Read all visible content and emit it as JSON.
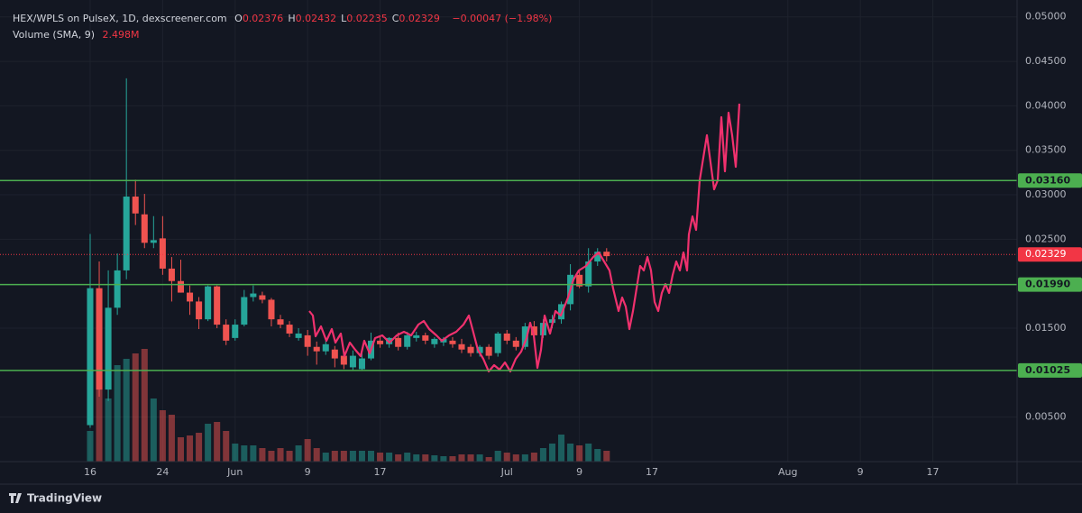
{
  "header": {
    "symbol": "HEX/WPLS on PulseX, 1D, dexscreener.com",
    "ohlc": [
      {
        "label": "O",
        "value": "0.02376"
      },
      {
        "label": "H",
        "value": "0.02432"
      },
      {
        "label": "L",
        "value": "0.02235"
      },
      {
        "label": "C",
        "value": "0.02329"
      }
    ],
    "change": "−0.00047 (−1.98%)"
  },
  "volume_indicator": {
    "label": "Volume (SMA, 9)",
    "value": "2.498M"
  },
  "footer": {
    "brand": "TradingView"
  },
  "chart_data": {
    "type": "candlestick",
    "up_color": "#26a69a",
    "down_color": "#ef5350",
    "grid": true,
    "x": [
      0,
      1,
      2,
      3,
      4,
      5,
      6,
      7,
      8,
      9,
      10,
      11,
      12,
      13,
      14,
      15,
      16,
      17,
      18,
      19,
      20,
      21,
      22,
      23,
      24,
      25,
      26,
      27,
      28,
      29,
      30,
      31,
      32,
      33,
      34,
      35,
      36,
      37,
      38,
      39,
      40,
      41,
      42,
      43,
      44,
      45,
      46,
      47,
      48,
      49,
      50,
      51,
      52,
      53,
      54,
      55,
      56,
      57
    ],
    "open": [
      0.0041,
      0.0195,
      0.0081,
      0.0173,
      0.0215,
      0.0298,
      0.0278,
      0.0246,
      0.0251,
      0.0217,
      0.0203,
      0.019,
      0.018,
      0.016,
      0.0197,
      0.0154,
      0.0139,
      0.0154,
      0.0185,
      0.0187,
      0.0182,
      0.016,
      0.0154,
      0.0139,
      0.0142,
      0.0129,
      0.0124,
      0.0126,
      0.0119,
      0.0106,
      0.0104,
      0.0116,
      0.0136,
      0.0132,
      0.0139,
      0.0129,
      0.0139,
      0.0142,
      0.0132,
      0.0134,
      0.0136,
      0.0132,
      0.0129,
      0.0122,
      0.0129,
      0.0122,
      0.0144,
      0.0136,
      0.0129,
      0.0152,
      0.0142,
      0.0156,
      0.016,
      0.0177,
      0.021,
      0.0197,
      0.0225,
      0.0236
    ],
    "high": [
      0.0256,
      0.0225,
      0.0215,
      0.0234,
      0.0431,
      0.0317,
      0.0301,
      0.0276,
      0.0276,
      0.023,
      0.0227,
      0.0198,
      0.0185,
      0.0198,
      0.0198,
      0.016,
      0.016,
      0.0193,
      0.0198,
      0.0191,
      0.0184,
      0.0165,
      0.0158,
      0.015,
      0.0148,
      0.0135,
      0.0136,
      0.013,
      0.0122,
      0.0125,
      0.0122,
      0.0145,
      0.0142,
      0.014,
      0.0145,
      0.0146,
      0.0146,
      0.0145,
      0.014,
      0.014,
      0.014,
      0.0138,
      0.0132,
      0.0131,
      0.0132,
      0.0146,
      0.0148,
      0.014,
      0.0156,
      0.0158,
      0.016,
      0.0165,
      0.018,
      0.0222,
      0.0215,
      0.024,
      0.024,
      0.024
    ],
    "low": [
      0.0038,
      0.0073,
      0.0068,
      0.0165,
      0.0205,
      0.0266,
      0.024,
      0.024,
      0.021,
      0.018,
      0.019,
      0.0165,
      0.0149,
      0.0158,
      0.015,
      0.0131,
      0.0136,
      0.0152,
      0.018,
      0.0178,
      0.0152,
      0.015,
      0.014,
      0.0136,
      0.0119,
      0.0109,
      0.012,
      0.0106,
      0.0104,
      0.0103,
      0.0102,
      0.0114,
      0.0128,
      0.0128,
      0.0125,
      0.0126,
      0.0135,
      0.0132,
      0.0128,
      0.013,
      0.0128,
      0.0122,
      0.0118,
      0.0118,
      0.0115,
      0.0118,
      0.0132,
      0.0125,
      0.0126,
      0.0138,
      0.0139,
      0.015,
      0.0155,
      0.017,
      0.0195,
      0.019,
      0.022,
      0.0225
    ],
    "close": [
      0.0195,
      0.0081,
      0.0173,
      0.0215,
      0.0298,
      0.0279,
      0.0246,
      0.0249,
      0.0217,
      0.0203,
      0.019,
      0.018,
      0.016,
      0.0197,
      0.0154,
      0.0136,
      0.0154,
      0.0185,
      0.0189,
      0.0182,
      0.016,
      0.0154,
      0.0144,
      0.0144,
      0.0129,
      0.0124,
      0.0132,
      0.0116,
      0.0109,
      0.0119,
      0.0116,
      0.0136,
      0.0132,
      0.0139,
      0.0129,
      0.0142,
      0.0142,
      0.0136,
      0.0138,
      0.0138,
      0.0132,
      0.0126,
      0.0122,
      0.0129,
      0.0119,
      0.0144,
      0.0136,
      0.0129,
      0.0152,
      0.0142,
      0.0156,
      0.016,
      0.0177,
      0.021,
      0.0197,
      0.0225,
      0.0236,
      0.0231
    ],
    "volume": [
      3.4,
      11.0,
      7.0,
      10.7,
      11.4,
      12.0,
      12.5,
      7.0,
      5.7,
      5.2,
      2.7,
      2.9,
      3.2,
      4.2,
      4.4,
      3.4,
      2.0,
      1.8,
      1.8,
      1.5,
      1.2,
      1.5,
      1.2,
      1.8,
      2.5,
      1.5,
      1.0,
      1.2,
      1.2,
      1.2,
      1.2,
      1.2,
      1.0,
      1.0,
      0.8,
      1.0,
      0.8,
      0.8,
      0.7,
      0.6,
      0.6,
      0.8,
      0.8,
      0.8,
      0.5,
      1.2,
      1.0,
      0.8,
      0.8,
      1.0,
      1.5,
      2.0,
      3.0,
      2.0,
      1.8,
      2.0,
      1.4,
      1.2
    ],
    "xlim": [
      -9.95,
      102.3
    ],
    "xticks": [
      {
        "value": 0,
        "label": "16"
      },
      {
        "value": 8,
        "label": "24"
      },
      {
        "value": 16,
        "label": "Jun"
      },
      {
        "value": 24,
        "label": "9"
      },
      {
        "value": 32,
        "label": "17"
      },
      {
        "value": 46,
        "label": "Jul"
      },
      {
        "value": 54,
        "label": "9"
      },
      {
        "value": 62,
        "label": "17"
      },
      {
        "value": 77,
        "label": "Aug"
      },
      {
        "value": 85,
        "label": "9"
      },
      {
        "value": 93,
        "label": "17"
      }
    ],
    "ylim": [
      0,
      0.0519
    ],
    "yticks": [
      {
        "value": 0.005,
        "label": "0.00500"
      },
      {
        "value": 0.015,
        "label": "0.01500"
      },
      {
        "value": 0.025,
        "label": "0.02500"
      },
      {
        "value": 0.03,
        "label": "0.03000"
      },
      {
        "value": 0.035,
        "label": "0.03500"
      },
      {
        "value": 0.04,
        "label": "0.04000"
      },
      {
        "value": 0.045,
        "label": "0.04500"
      },
      {
        "value": 0.05,
        "label": "0.05000"
      }
    ],
    "horizontal_lines": [
      {
        "value": 0.0316,
        "label": "0.03160",
        "color": "#4caf50"
      },
      {
        "value": 0.0199,
        "label": "0.01990",
        "color": "#4caf50"
      },
      {
        "value": 0.01025,
        "label": "0.01025",
        "color": "#4caf50"
      }
    ],
    "last_price": {
      "value": 0.02329,
      "label": "0.02329",
      "color": "#f23645"
    }
  }
}
